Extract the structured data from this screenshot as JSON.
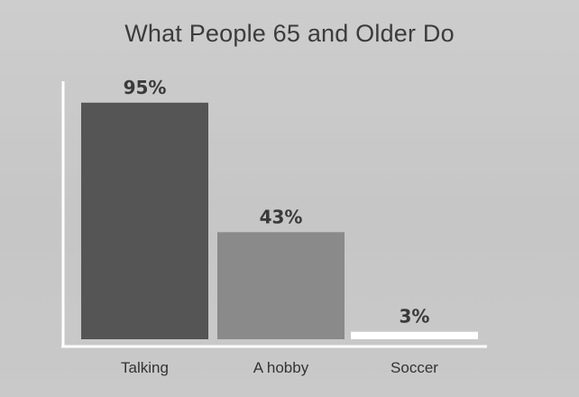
{
  "chart_data": {
    "type": "bar",
    "title": "What People 65 and Older Do",
    "categories": [
      "Talking",
      "A hobby",
      "Soccer"
    ],
    "values": [
      95,
      43,
      3
    ],
    "value_labels": [
      "95%",
      "43%",
      "3%"
    ],
    "ylim": [
      0,
      100
    ],
    "xlabel": "",
    "ylabel": "",
    "grid": false,
    "bar_colors": [
      "#555555",
      "#8a8a8a",
      "#ffffff"
    ],
    "axis_color": "#ffffff"
  }
}
